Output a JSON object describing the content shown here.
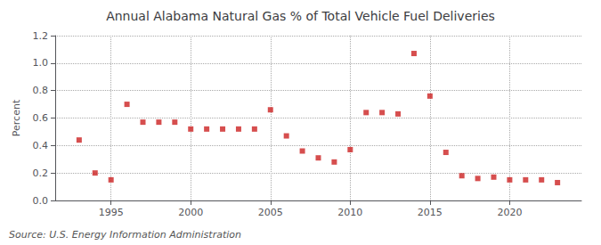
{
  "chart_data": {
    "type": "scatter",
    "title": "Annual Alabama Natural Gas % of Total Vehicle Fuel Deliveries",
    "ylabel": "Percent",
    "annotations": [
      "Source: U.S. Energy Information Administration"
    ],
    "color": "#cc2222",
    "marker": "square",
    "grid": true,
    "x": [
      1993,
      1994,
      1995,
      1996,
      1997,
      1998,
      1999,
      2000,
      2001,
      2002,
      2003,
      2004,
      2005,
      2006,
      2007,
      2008,
      2009,
      2010,
      2011,
      2012,
      2013,
      2014,
      2015,
      2016,
      2017,
      2018,
      2019,
      2020,
      2021,
      2022,
      2023
    ],
    "values": [
      0.44,
      0.2,
      0.15,
      0.7,
      0.57,
      0.57,
      0.57,
      0.52,
      0.52,
      0.52,
      0.52,
      0.52,
      0.66,
      0.47,
      0.36,
      0.31,
      0.28,
      0.37,
      0.64,
      0.64,
      0.63,
      1.07,
      0.76,
      0.35,
      0.18,
      0.16,
      0.17,
      0.15,
      0.15,
      0.15,
      0.13
    ],
    "xlim": [
      1991.5,
      2024.5
    ],
    "xticks": [
      1995,
      2000,
      2005,
      2010,
      2015,
      2020
    ],
    "ylim": [
      0.0,
      1.2
    ],
    "yticks": [
      {
        "value": 0.0,
        "label": "0.0"
      },
      0.2,
      0.4,
      0.6,
      0.8,
      {
        "value": 1.0,
        "label": "1.0"
      },
      1.2
    ]
  }
}
